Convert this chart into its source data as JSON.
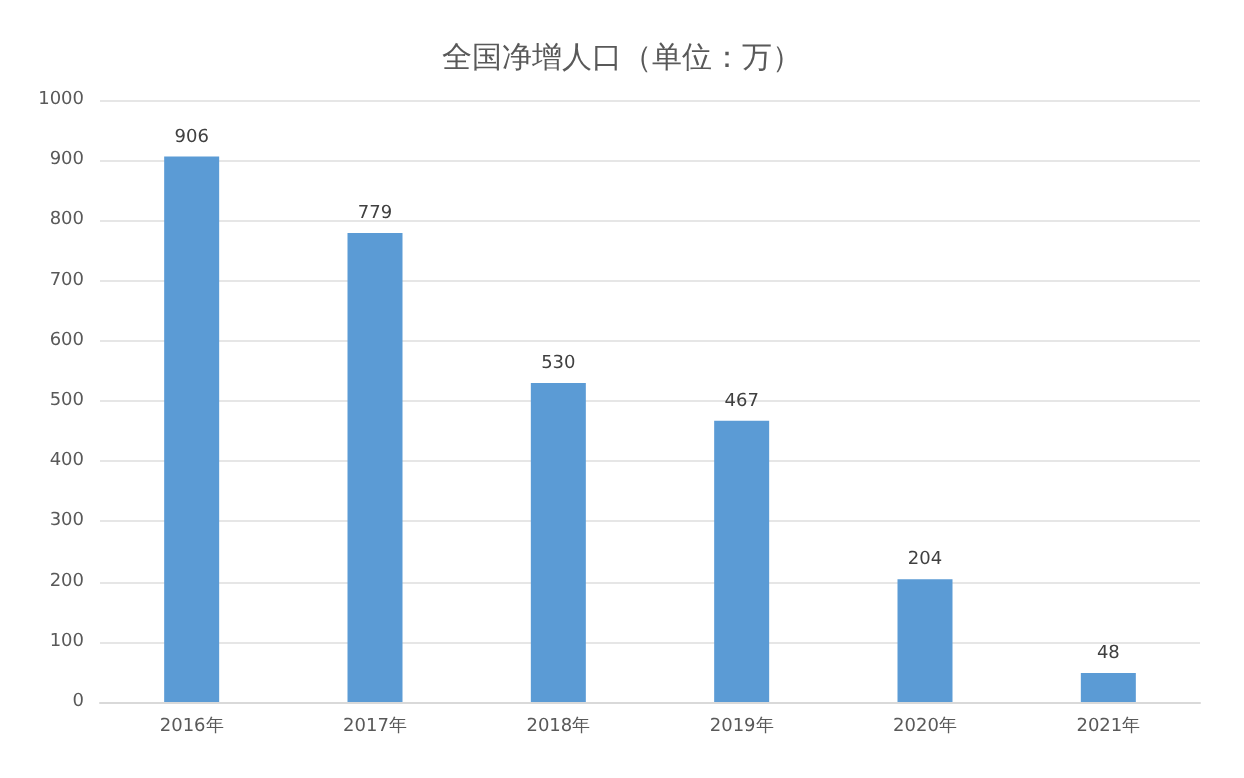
{
  "chart_data": {
    "type": "bar",
    "title": "全国净增人口（单位：万）",
    "categories": [
      "2016年",
      "2017年",
      "2018年",
      "2019年",
      "2020年",
      "2021年"
    ],
    "values": [
      906,
      779,
      530,
      467,
      204,
      48
    ],
    "color": "#5b9bd5",
    "ylim": [
      0,
      1000
    ],
    "yticks": [
      0,
      100,
      200,
      300,
      400,
      500,
      600,
      700,
      800,
      900,
      1000
    ],
    "grid": "y",
    "data_labels": true
  }
}
